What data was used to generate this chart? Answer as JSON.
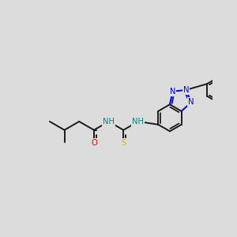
{
  "bg_color": "#dcdcdc",
  "bond_color": "#1a1a1a",
  "bond_width": 1.4,
  "colors": {
    "N": "#0000ee",
    "O": "#dd0000",
    "S": "#ccbb00",
    "NH": "#008888",
    "C": "#1a1a1a"
  },
  "font_size": 7.2
}
